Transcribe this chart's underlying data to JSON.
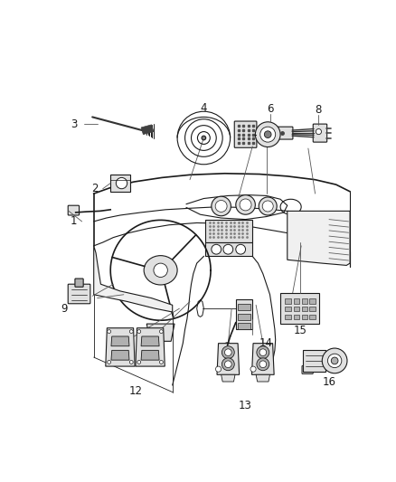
{
  "background_color": "#ffffff",
  "figure_width": 4.39,
  "figure_height": 5.33,
  "dpi": 100,
  "line_color": "#1a1a1a",
  "text_color": "#1a1a1a",
  "label_fontsize": 8.5,
  "gray_fill": "#c8c8c8",
  "light_gray": "#e0e0e0",
  "mid_gray": "#b0b0b0"
}
